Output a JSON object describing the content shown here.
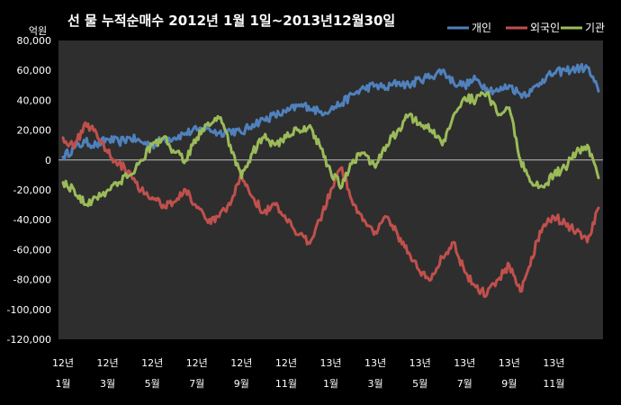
{
  "chart_data": {
    "type": "line",
    "title": "선 물 누적순매수 2012년 1월 1일~2013년12월30일",
    "unit_label": "억원",
    "ylim": [
      -120000,
      80000
    ],
    "yticks": [
      80000,
      60000,
      40000,
      20000,
      0,
      -20000,
      -40000,
      -60000,
      -80000,
      -100000,
      -120000
    ],
    "ytick_labels": [
      "80,000",
      "60,000",
      "40,000",
      "20,000",
      "0",
      "-20,000",
      "-40,000",
      "-60,000",
      "-80,000",
      "-100,000",
      "-120,000"
    ],
    "x_index_range": [
      0,
      24
    ],
    "x_ticks": [
      {
        "i": 0,
        "year": "12년",
        "month": "1월"
      },
      {
        "i": 2,
        "year": "12년",
        "month": "3월"
      },
      {
        "i": 4,
        "year": "12년",
        "month": "5월"
      },
      {
        "i": 6,
        "year": "12년",
        "month": "7월"
      },
      {
        "i": 8,
        "year": "12년",
        "month": "9월"
      },
      {
        "i": 10,
        "year": "12년",
        "month": "11월"
      },
      {
        "i": 12,
        "year": "13년",
        "month": "1월"
      },
      {
        "i": 14,
        "year": "13년",
        "month": "3월"
      },
      {
        "i": 16,
        "year": "13년",
        "month": "5월"
      },
      {
        "i": 18,
        "year": "13년",
        "month": "7월"
      },
      {
        "i": 20,
        "year": "13년",
        "month": "9월"
      },
      {
        "i": 22,
        "year": "13년",
        "month": "11월"
      }
    ],
    "grid": false,
    "legend_position": "top-right",
    "series": [
      {
        "name": "개인",
        "color": "#4F81BD",
        "points": [
          [
            0,
            2000
          ],
          [
            0.5,
            8000
          ],
          [
            1,
            12000
          ],
          [
            1.5,
            10000
          ],
          [
            2,
            14000
          ],
          [
            2.5,
            12000
          ],
          [
            3,
            15000
          ],
          [
            3.5,
            12000
          ],
          [
            4,
            10000
          ],
          [
            4.5,
            14000
          ],
          [
            5,
            15000
          ],
          [
            5.5,
            18000
          ],
          [
            6,
            20000
          ],
          [
            6.5,
            21000
          ],
          [
            7,
            18000
          ],
          [
            7.5,
            20000
          ],
          [
            8,
            18000
          ],
          [
            8.5,
            24000
          ],
          [
            9,
            27000
          ],
          [
            9.5,
            30000
          ],
          [
            10,
            32000
          ],
          [
            10.5,
            36000
          ],
          [
            11,
            36000
          ],
          [
            11.5,
            32000
          ],
          [
            12,
            34000
          ],
          [
            12.5,
            38000
          ],
          [
            13,
            44000
          ],
          [
            13.5,
            48000
          ],
          [
            14,
            50000
          ],
          [
            14.5,
            48000
          ],
          [
            15,
            52000
          ],
          [
            15.5,
            50000
          ],
          [
            16,
            54000
          ],
          [
            16.5,
            56000
          ],
          [
            17,
            60000
          ],
          [
            17.5,
            52000
          ],
          [
            18,
            50000
          ],
          [
            18.5,
            54000
          ],
          [
            19,
            48000
          ],
          [
            19.5,
            46000
          ],
          [
            20,
            50000
          ],
          [
            20.5,
            44000
          ],
          [
            21,
            46000
          ],
          [
            21.5,
            54000
          ],
          [
            22,
            58000
          ],
          [
            22.5,
            60000
          ],
          [
            23,
            61000
          ],
          [
            23.5,
            62000
          ],
          [
            24,
            46000
          ]
        ]
      },
      {
        "name": "외국인",
        "color": "#C0504D",
        "points": [
          [
            0,
            15000
          ],
          [
            0.5,
            8000
          ],
          [
            1,
            25000
          ],
          [
            1.5,
            18000
          ],
          [
            2,
            5000
          ],
          [
            2.5,
            -2000
          ],
          [
            3,
            -8000
          ],
          [
            3.5,
            -20000
          ],
          [
            4,
            -25000
          ],
          [
            4.5,
            -30000
          ],
          [
            5,
            -28000
          ],
          [
            5.5,
            -20000
          ],
          [
            6,
            -32000
          ],
          [
            6.5,
            -42000
          ],
          [
            7,
            -38000
          ],
          [
            7.5,
            -30000
          ],
          [
            8,
            -10000
          ],
          [
            8.5,
            -25000
          ],
          [
            9,
            -35000
          ],
          [
            9.5,
            -30000
          ],
          [
            10,
            -40000
          ],
          [
            10.5,
            -50000
          ],
          [
            11,
            -55000
          ],
          [
            11.5,
            -40000
          ],
          [
            12,
            -20000
          ],
          [
            12.5,
            -5000
          ],
          [
            13,
            -30000
          ],
          [
            13.5,
            -40000
          ],
          [
            14,
            -48000
          ],
          [
            14.5,
            -38000
          ],
          [
            15,
            -50000
          ],
          [
            15.5,
            -62000
          ],
          [
            16,
            -75000
          ],
          [
            16.5,
            -80000
          ],
          [
            17,
            -65000
          ],
          [
            17.5,
            -55000
          ],
          [
            18,
            -75000
          ],
          [
            18.5,
            -85000
          ],
          [
            19,
            -90000
          ],
          [
            19.5,
            -80000
          ],
          [
            20,
            -70000
          ],
          [
            20.5,
            -88000
          ],
          [
            21,
            -65000
          ],
          [
            21.5,
            -45000
          ],
          [
            22,
            -38000
          ],
          [
            22.5,
            -42000
          ],
          [
            23,
            -48000
          ],
          [
            23.5,
            -55000
          ],
          [
            24,
            -32000
          ]
        ]
      },
      {
        "name": "기관",
        "color": "#9BBB59",
        "points": [
          [
            0,
            -15000
          ],
          [
            0.5,
            -20000
          ],
          [
            1,
            -30000
          ],
          [
            1.5,
            -25000
          ],
          [
            2,
            -20000
          ],
          [
            2.5,
            -15000
          ],
          [
            3,
            -10000
          ],
          [
            3.5,
            0
          ],
          [
            4,
            10000
          ],
          [
            4.5,
            15000
          ],
          [
            5,
            5000
          ],
          [
            5.5,
            0
          ],
          [
            6,
            15000
          ],
          [
            6.5,
            25000
          ],
          [
            7,
            28000
          ],
          [
            7.5,
            10000
          ],
          [
            8,
            -12000
          ],
          [
            8.5,
            5000
          ],
          [
            9,
            15000
          ],
          [
            9.5,
            10000
          ],
          [
            10,
            15000
          ],
          [
            10.5,
            20000
          ],
          [
            11,
            22000
          ],
          [
            11.5,
            10000
          ],
          [
            12,
            -8000
          ],
          [
            12.5,
            -18000
          ],
          [
            13,
            0
          ],
          [
            13.5,
            5000
          ],
          [
            14,
            -5000
          ],
          [
            14.5,
            10000
          ],
          [
            15,
            20000
          ],
          [
            15.5,
            30000
          ],
          [
            16,
            25000
          ],
          [
            16.5,
            20000
          ],
          [
            17,
            10000
          ],
          [
            17.5,
            30000
          ],
          [
            18,
            42000
          ],
          [
            18.5,
            40000
          ],
          [
            19,
            45000
          ],
          [
            19.5,
            30000
          ],
          [
            20,
            35000
          ],
          [
            20.5,
            0
          ],
          [
            21,
            -15000
          ],
          [
            21.5,
            -18000
          ],
          [
            22,
            -10000
          ],
          [
            22.5,
            -5000
          ],
          [
            23,
            5000
          ],
          [
            23.5,
            10000
          ],
          [
            24,
            -12000
          ]
        ]
      }
    ]
  }
}
